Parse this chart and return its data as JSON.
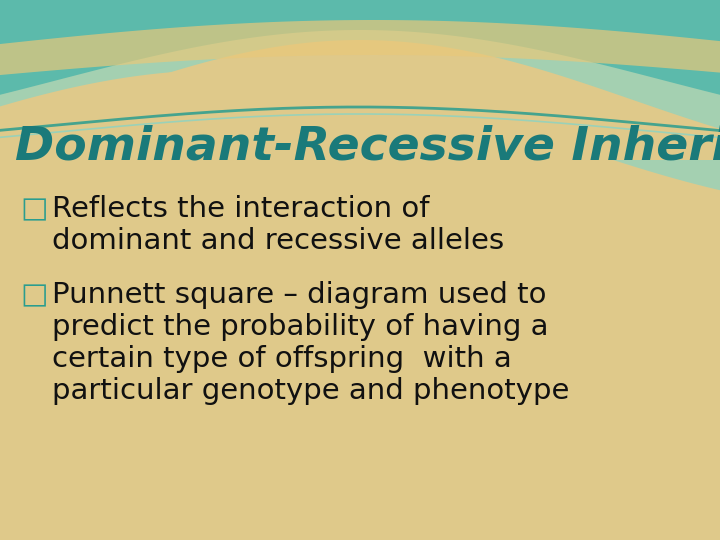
{
  "title": "Dominant-Recessive Inheritance",
  "title_color": "#1a7a7a",
  "title_fontsize": 34,
  "bg_color": "#dfc98a",
  "wave_teal_dark": "#4ab5aa",
  "wave_teal_light": "#7dd5cc",
  "wave_cream": "#c8b06e",
  "bullet1_marker": "□",
  "bullet1_line1": "Reflects the interaction of",
  "bullet1_line2": "dominant and recessive alleles",
  "bullet2_marker": "□",
  "bullet2_line1": "Punnett square – diagram used to",
  "bullet2_line2": "predict the probability of having a",
  "bullet2_line3": "certain type of offspring  with a",
  "bullet2_line4": "particular genotype and phenotype",
  "body_color": "#111111",
  "body_fontsize": 21,
  "marker_color": "#2a9d8f",
  "fig_width": 7.2,
  "fig_height": 5.4,
  "dpi": 100
}
